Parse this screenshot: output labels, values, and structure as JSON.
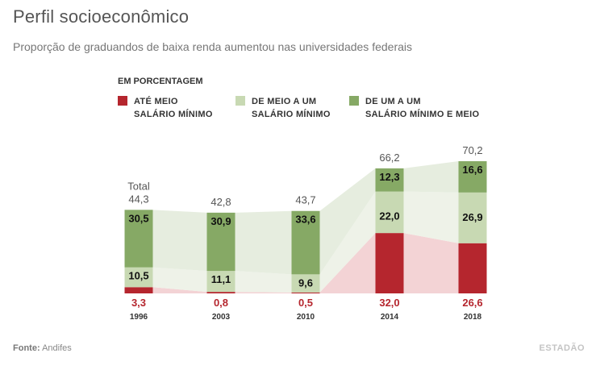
{
  "header": {
    "title": "Perfil socioeconômico",
    "subtitle": "Proporção de graduandos de baixa renda aumentou nas universidades federais",
    "unit": "EM PORCENTAGEM"
  },
  "legend": [
    {
      "label": "ATÉ MEIO\nSALÁRIO MÍNIMO",
      "color": "#b5262e"
    },
    {
      "label": "DE MEIO A UM\nSALÁRIO MÍNIMO",
      "color": "#c8d9b3"
    },
    {
      "label": "DE UM A UM\nSALÁRIO MÍNIMO E MEIO",
      "color": "#86a965"
    }
  ],
  "chart_data": {
    "type": "bar",
    "stacked": true,
    "categories": [
      "1996",
      "2003",
      "2010",
      "2014",
      "2018"
    ],
    "series": [
      {
        "name": "ATÉ MEIO SALÁRIO MÍNIMO",
        "values": [
          3.3,
          0.8,
          0.5,
          32.0,
          26.6
        ],
        "labels": [
          "3,3",
          "0,8",
          "0,5",
          "32,0",
          "26,6"
        ],
        "color": "#b5262e"
      },
      {
        "name": "DE MEIO A UM SALÁRIO MÍNIMO",
        "values": [
          10.5,
          11.1,
          9.6,
          22.0,
          26.9
        ],
        "labels": [
          "10,5",
          "11,1",
          "9,6",
          "22,0",
          "26,9"
        ],
        "color": "#c8d9b3"
      },
      {
        "name": "DE UM A UM SALÁRIO MÍNIMO E MEIO",
        "values": [
          30.5,
          30.9,
          33.6,
          12.3,
          16.6
        ],
        "labels": [
          "30,5",
          "30,9",
          "33,6",
          "12,3",
          "16,6"
        ],
        "color": "#86a965"
      }
    ],
    "totals": [
      44.3,
      42.8,
      43.7,
      66.2,
      70.2
    ],
    "total_labels": [
      "44,3",
      "42,8",
      "43,7",
      "66,2",
      "70,2"
    ],
    "total_caption": "Total",
    "band_colors": [
      "#f3d3d5",
      "#eef2e8",
      "#e6eddf"
    ]
  },
  "footer": {
    "source_label": "Fonte:",
    "source_value": "Andifes",
    "brand": "ESTADÃO"
  }
}
